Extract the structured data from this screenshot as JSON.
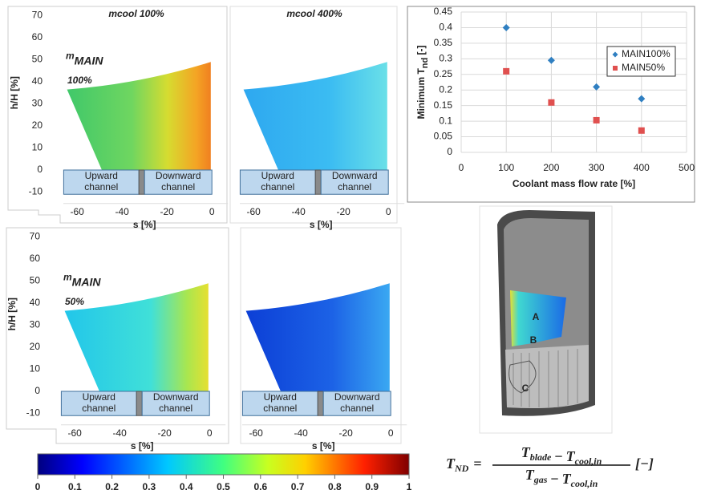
{
  "chart_data": {
    "type": "scatter",
    "x_label": "Coolant mass flow rate [%]",
    "y_label": "Minimum T",
    "y_label_sub": "nd",
    "y_label_suffix": " [-]",
    "xlim": [
      0,
      500
    ],
    "ylim": [
      0,
      0.45
    ],
    "xticks": [
      0,
      100,
      200,
      300,
      400,
      500
    ],
    "yticks": [
      0,
      0.05,
      0.1,
      0.15,
      0.2,
      0.25,
      0.3,
      0.35,
      0.4,
      0.45
    ],
    "grid": true,
    "legend": "upper right",
    "series": [
      {
        "name": "MAIN100%",
        "color": "#2f7fc1",
        "marker": "diamond",
        "x": [
          100,
          200,
          300,
          400
        ],
        "values": [
          0.4,
          0.295,
          0.21,
          0.172
        ]
      },
      {
        "name": "MAIN50%",
        "color": "#e0504f",
        "marker": "square",
        "x": [
          100,
          200,
          300,
          400
        ],
        "values": [
          0.26,
          0.16,
          0.103,
          0.07
        ]
      }
    ]
  },
  "panels": [
    {
      "title": "mcool 100%",
      "row_label": "m",
      "row_label_sub": "MAIN",
      "row_label_value": "100%",
      "y_label": "h/H [%]",
      "xlim": [
        -64,
        5
      ],
      "ylim": [
        -13,
        72
      ],
      "yticks": [
        70,
        60,
        50,
        40,
        30,
        20,
        10,
        0,
        -10
      ],
      "xticks": [
        -60,
        -40,
        -20,
        0
      ],
      "x_label": "s [%]",
      "channels": [
        "Upward channel",
        "Downward channel"
      ]
    },
    {
      "title": "mcool 400%",
      "xlim": [
        -64,
        5
      ],
      "ylim": [
        -13,
        72
      ],
      "xticks": [
        -60,
        -40,
        -20,
        0
      ],
      "x_label": "s [%]",
      "channels": [
        "Upward channel",
        "Downward channel"
      ]
    },
    {
      "row_label": "m",
      "row_label_sub": "MAIN",
      "row_label_value": "50%",
      "y_label": "h/H [%]",
      "xlim": [
        -64,
        5
      ],
      "ylim": [
        -13,
        72
      ],
      "yticks": [
        70,
        60,
        50,
        40,
        30,
        20,
        10,
        0,
        -10
      ],
      "xticks": [
        -60,
        -40,
        -20,
        0
      ],
      "x_label": "s [%]",
      "channels": [
        "Upward channel",
        "Downward channel"
      ]
    },
    {
      "xlim": [
        -64,
        5
      ],
      "ylim": [
        -13,
        72
      ],
      "xticks": [
        -60,
        -40,
        -20,
        0
      ],
      "x_label": "s [%]",
      "channels": [
        "Upward channel",
        "Downward channel"
      ]
    }
  ],
  "colorbar": {
    "lim": [
      0,
      1
    ],
    "ticks": [
      0,
      0.1,
      0.2,
      0.3,
      0.4,
      0.5,
      0.6,
      0.7,
      0.8,
      0.9,
      1
    ]
  },
  "figure_labels": [
    "A",
    "B",
    "C"
  ],
  "equation": {
    "lhs": "T",
    "lhs_sub": "ND",
    "equals": "=",
    "numerator": [
      {
        "t": "T",
        "sub": "blade"
      },
      {
        "t": "−"
      },
      {
        "t": "T",
        "sub": "cool,in"
      }
    ],
    "denominator": [
      {
        "t": "T",
        "sub": "gas"
      },
      {
        "t": "−"
      },
      {
        "t": "T",
        "sub": "cool,in"
      }
    ],
    "unit": "[−]"
  }
}
